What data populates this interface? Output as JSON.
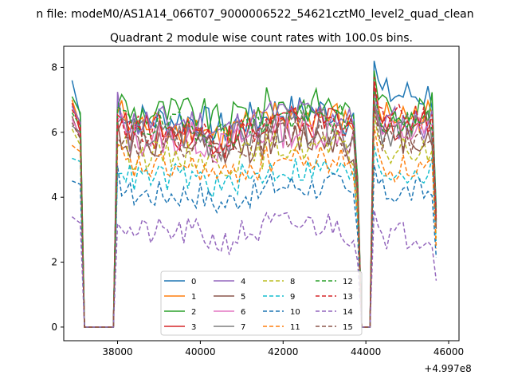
{
  "chart_data": {
    "type": "line",
    "suptitle": "n file: modeM0/AS1A14_066T07_9000006522_54621cztM0_level2_quad_clean",
    "title": "Quadrant 2 module wise count rates with 100.0s bins.",
    "xlabel": "",
    "ylabel": "",
    "x_offset_label": "+4.997e8",
    "xlim": [
      36700,
      46250
    ],
    "ylim": [
      -0.42,
      8.65
    ],
    "xticks": [
      38000,
      40000,
      42000,
      44000,
      46000
    ],
    "xtick_labels": [
      "38000",
      "40000",
      "42000",
      "44000",
      "46000"
    ],
    "yticks": [
      0,
      2,
      4,
      6,
      8
    ],
    "ytick_labels": [
      "0",
      "2",
      "4",
      "6",
      "8"
    ],
    "segments": [
      {
        "x_start": 36900,
        "x_end": 37900,
        "gap_start": 37200,
        "gap_end": 37900
      },
      {
        "x_start": 38000,
        "x_end": 43800
      },
      {
        "x_start": 43800,
        "x_end": 44200,
        "gap_start": 43900,
        "gap_end": 44100
      },
      {
        "x_start": 44200,
        "x_end": 45700
      }
    ],
    "legend_location": "lower center",
    "legend_columns": 4,
    "series": [
      {
        "name": "0",
        "color": "#1f77b4",
        "style": "solid",
        "mean": 6.4,
        "seg1": [
          7.6,
          6.5
        ],
        "seg3": [
          8.2,
          7.6
        ],
        "end": 6.7
      },
      {
        "name": "1",
        "color": "#ff7f0e",
        "style": "solid",
        "mean": 6.2,
        "seg1": [
          7.0,
          6.2
        ],
        "seg3": [
          7.4,
          6.8
        ],
        "end": 6.2
      },
      {
        "name": "2",
        "color": "#2ca02c",
        "style": "solid",
        "mean": 6.6,
        "seg1": [
          7.1,
          6.6
        ],
        "seg3": [
          7.9,
          7.0
        ],
        "end": 6.4
      },
      {
        "name": "3",
        "color": "#d62728",
        "style": "solid",
        "mean": 6.0,
        "seg1": [
          6.9,
          6.0
        ],
        "seg3": [
          7.5,
          6.6
        ],
        "end": 5.9
      },
      {
        "name": "4",
        "color": "#9467bd",
        "style": "solid",
        "mean": 6.3,
        "seg1": [
          6.8,
          6.3
        ],
        "seg3": [
          7.3,
          6.6
        ],
        "end": 6.0
      },
      {
        "name": "5",
        "color": "#8c564b",
        "style": "solid",
        "mean": 5.6,
        "seg1": [
          6.5,
          5.8
        ],
        "seg3": [
          6.9,
          6.2
        ],
        "end": 5.5
      },
      {
        "name": "6",
        "color": "#e377c2",
        "style": "solid",
        "mean": 5.8,
        "seg1": [
          6.4,
          5.9
        ],
        "seg3": [
          7.0,
          6.3
        ],
        "end": 5.7
      },
      {
        "name": "7",
        "color": "#7f7f7f",
        "style": "solid",
        "mean": 5.9,
        "seg1": [
          6.2,
          6.0
        ],
        "seg3": [
          7.0,
          6.4
        ],
        "end": 5.8
      },
      {
        "name": "8",
        "color": "#bcbd22",
        "style": "dashed",
        "mean": 5.3,
        "seg1": [
          6.1,
          5.6
        ],
        "seg3": [
          6.6,
          5.8
        ],
        "end": 5.0
      },
      {
        "name": "9",
        "color": "#17becf",
        "style": "dashed",
        "mean": 4.6,
        "seg1": [
          5.2,
          5.1
        ],
        "seg3": [
          5.6,
          5.0
        ],
        "end": 4.6
      },
      {
        "name": "10",
        "color": "#1f77b4",
        "style": "dashed",
        "mean": 4.1,
        "seg1": [
          4.5,
          4.4
        ],
        "seg3": [
          5.0,
          4.4
        ],
        "end": 3.9
      },
      {
        "name": "11",
        "color": "#ff7f0e",
        "style": "dashed",
        "mean": 4.9,
        "seg1": [
          5.6,
          5.4
        ],
        "seg3": [
          6.2,
          5.4
        ],
        "end": 4.4
      },
      {
        "name": "12",
        "color": "#2ca02c",
        "style": "dashed",
        "mean": 6.2,
        "seg1": [
          6.6,
          6.2
        ],
        "seg3": [
          7.3,
          6.6
        ],
        "end": 6.0
      },
      {
        "name": "13",
        "color": "#d62728",
        "style": "dashed",
        "mean": 6.1,
        "seg1": [
          6.7,
          6.2
        ],
        "seg3": [
          7.7,
          6.8
        ],
        "end": 6.0
      },
      {
        "name": "14",
        "color": "#9467bd",
        "style": "dashed",
        "mean": 2.9,
        "seg1": [
          3.4,
          3.2
        ],
        "seg3": [
          3.6,
          3.1
        ],
        "end": 2.6
      },
      {
        "name": "15",
        "color": "#8c564b",
        "style": "dashed",
        "mean": 5.7,
        "seg1": [
          6.3,
          5.8
        ],
        "seg3": [
          6.8,
          6.0
        ],
        "end": 5.5
      }
    ]
  }
}
